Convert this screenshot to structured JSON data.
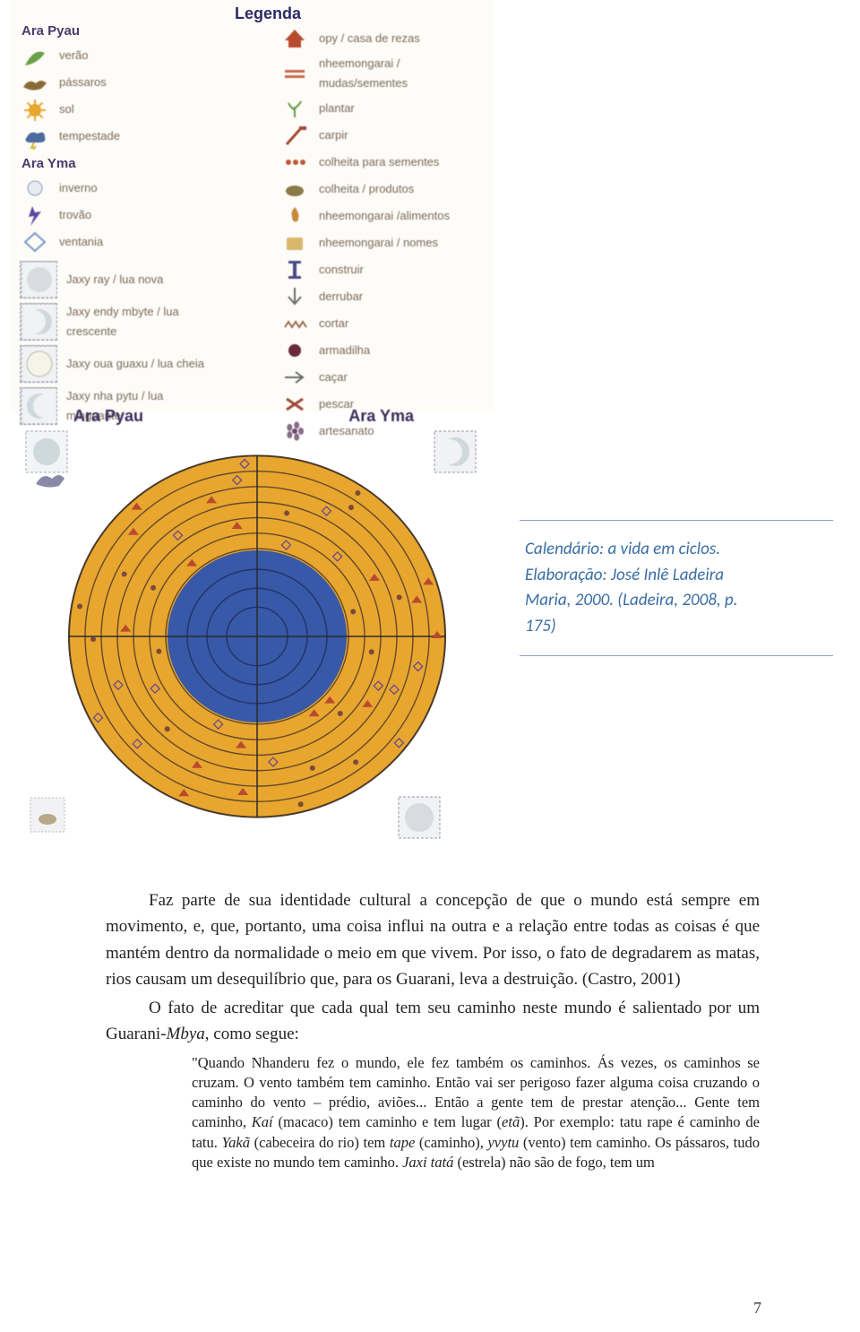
{
  "legend": {
    "title": "Legenda",
    "left": {
      "heading1": "Ara Pyau",
      "items1": [
        {
          "icon": "leaf",
          "color": "#6aa04a",
          "label": "verão"
        },
        {
          "icon": "bird",
          "color": "#8b6a3a",
          "label": "pássaros"
        },
        {
          "icon": "sun",
          "color": "#e8a62e",
          "label": "sol"
        },
        {
          "icon": "storm",
          "color": "#4a6aa0",
          "label": "tempestade"
        }
      ],
      "heading2": "Ara Yma",
      "items2": [
        {
          "icon": "snow",
          "color": "#8aa0c0",
          "label": "inverno"
        },
        {
          "icon": "bolt",
          "color": "#5a4aa0",
          "label": "trovão"
        },
        {
          "icon": "diamond",
          "color": "#7a9ac8",
          "label": "ventania"
        }
      ],
      "moons": [
        {
          "phase": "new",
          "label": "Jaxy ray / lua nova"
        },
        {
          "phase": "crescent",
          "label": "Jaxy endy mbyte / lua crescente"
        },
        {
          "phase": "full",
          "label": "Jaxy oua guaxu / lua cheia"
        },
        {
          "phase": "waning",
          "label": "Jaxy nha pytu / lua minguante"
        }
      ]
    },
    "right": [
      {
        "icon": "house",
        "color": "#b84a2e",
        "label": "opy / casa de rezas"
      },
      {
        "icon": "bars",
        "color": "#c86a4a",
        "label": "nheemongarai / mudas/sementes"
      },
      {
        "icon": "plant",
        "color": "#6a9a4a",
        "label": "plantar"
      },
      {
        "icon": "hoe",
        "color": "#a04a2e",
        "label": "carpir"
      },
      {
        "icon": "dots",
        "color": "#b85a3a",
        "label": "colheita para sementes"
      },
      {
        "icon": "basket",
        "color": "#8a7a4a",
        "label": "colheita / produtos"
      },
      {
        "icon": "flame",
        "color": "#c88a3a",
        "label": "nheemongarai /alimentos"
      },
      {
        "icon": "scroll",
        "color": "#d8b86a",
        "label": "nheemongarai / nomes"
      },
      {
        "icon": "ibar",
        "color": "#4a4a8a",
        "label": "construir"
      },
      {
        "icon": "arrow-down",
        "color": "#6a6a6a",
        "label": "derrubar"
      },
      {
        "icon": "saw",
        "color": "#9a6a4a",
        "label": "cortar"
      },
      {
        "icon": "circle",
        "color": "#6a2a3a",
        "label": "armadilha"
      },
      {
        "icon": "arrow-right",
        "color": "#6a6a6a",
        "label": "caçar"
      },
      {
        "icon": "x",
        "color": "#a04a3a",
        "label": "pescar"
      },
      {
        "icon": "flower",
        "color": "#6a4a6a",
        "label": "artesanato"
      }
    ]
  },
  "wheel": {
    "label_left": "Ara Pyau",
    "label_right": "Ara Yma",
    "outer_color": "#e8a62e",
    "inner_color": "#3858a8",
    "ring_line": "#4a3a2a",
    "cross_line": "#2a2a2a"
  },
  "caption": {
    "line1": "Calendário: a vida em ciclos.",
    "line2": "Elaboração: José Inlê Ladeira",
    "line3": "Maria, 2000. (Ladeira, 2008, p.",
    "line4": "175)"
  },
  "paragraphs": {
    "p1": "Faz parte de sua identidade cultural a concepção de que o mundo está sempre em movimento, e, que, portanto, uma coisa influi na outra e a relação entre todas as coisas é que mantém dentro da normalidade o meio em que vivem. Por isso, o fato de degradarem as matas, rios causam um desequilíbrio que, para os Guarani, leva a destruição. (Castro, 2001)",
    "p2a": "O fato de acreditar que cada qual tem seu caminho neste mundo é salientado por um Guarani-",
    "p2_italic": "Mbya",
    "p2b": ", como segue:",
    "quote": "\"Quando Nhanderu fez o mundo, ele fez também os caminhos. Ás vezes, os caminhos se cruzam. O vento também tem caminho. Então vai ser perigoso fazer alguma coisa cruzando o caminho do vento – prédio, aviões... Então a gente tem de prestar atenção... Gente tem caminho, ",
    "q_i1": "Kaí",
    "quote2": " (macaco) tem caminho e tem lugar (",
    "q_i2": "etã",
    "quote3": "). Por exemplo: tatu rape é caminho de tatu. ",
    "q_i3": "Yakã",
    "quote4": " (cabeceira do rio) tem ",
    "q_i4": "tape",
    "quote5": " (caminho), ",
    "q_i5": "yvytu",
    "quote6": " (vento) tem caminho. Os pássaros, tudo que existe no mundo tem caminho. ",
    "q_i6": "Jaxi tatá",
    "quote7": " (estrela) não são de fogo, tem um"
  },
  "page_number": "7"
}
